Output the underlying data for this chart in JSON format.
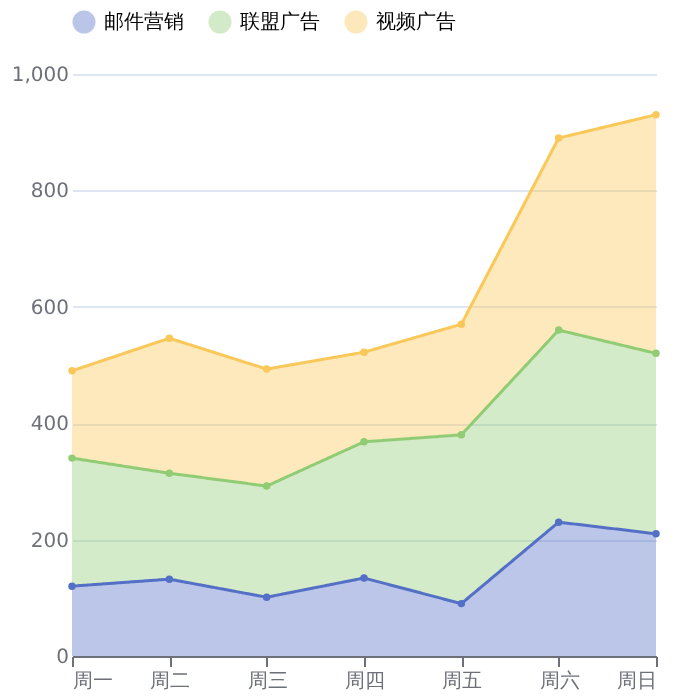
{
  "chart_data": {
    "type": "area",
    "stacked": true,
    "categories": [
      "周一",
      "周二",
      "周三",
      "周四",
      "周五",
      "周六",
      "周日"
    ],
    "series": [
      {
        "name": "邮件营销",
        "color": "#5470c6",
        "values": [
          120,
          132,
          101,
          134,
          90,
          230,
          210
        ]
      },
      {
        "name": "联盟广告",
        "color": "#91cc75",
        "values": [
          220,
          182,
          191,
          234,
          290,
          330,
          310
        ]
      },
      {
        "name": "视频广告",
        "color": "#fac858",
        "values": [
          150,
          232,
          201,
          154,
          190,
          330,
          410
        ]
      }
    ],
    "ylim": [
      0,
      1000
    ],
    "yticks": [
      0,
      200,
      400,
      600,
      800,
      {
        "value": 1000,
        "label": "1,000"
      }
    ],
    "grid": "y",
    "legend": "top",
    "marker": "circle",
    "line_style": "solid"
  }
}
